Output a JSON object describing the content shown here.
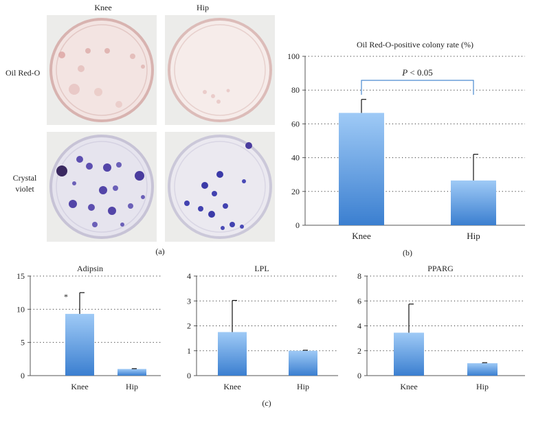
{
  "panel_a": {
    "column_headers": [
      "Knee",
      "Hip"
    ],
    "row_labels": [
      "Oil Red-O",
      "Crystal\nviolet"
    ],
    "row_label_lines": [
      [
        "Oil Red-O"
      ],
      [
        "Crystal",
        "violet"
      ]
    ],
    "caption": "(a)",
    "colors": {
      "oil_red_stain": "#d9a0a0",
      "crystal_violet": "#4a3a9a",
      "plate_bg": "#ececea"
    }
  },
  "panel_b": {
    "caption": "(b)"
  },
  "panel_c": {
    "caption": "(c)"
  },
  "chart_data": [
    {
      "id": "b",
      "type": "bar",
      "title": "Oil Red-O-positive colony rate (%)",
      "categories": [
        "Knee",
        "Hip"
      ],
      "values": [
        66.5,
        26.5
      ],
      "error_upper": [
        74.5,
        42
      ],
      "ylim": [
        0,
        100
      ],
      "yticks": [
        0,
        20,
        40,
        60,
        80,
        100
      ],
      "grid": "dotted horizontal",
      "annotation": {
        "text_italic": "P",
        "text_rest": " < 0.05",
        "between": [
          "Knee",
          "Hip"
        ]
      },
      "colors": {
        "bar_top": "#9fcaf6",
        "bar_bottom": "#3b7fd0",
        "bracket": "#4a8ad0"
      }
    },
    {
      "id": "c1",
      "type": "bar",
      "title": "Adipsin",
      "categories": [
        "Knee",
        "Hip"
      ],
      "values": [
        9.3,
        1.0
      ],
      "error_upper": [
        12.5,
        1.05
      ],
      "ylim": [
        0,
        15
      ],
      "yticks": [
        0,
        5,
        10,
        15
      ],
      "significance_marker": {
        "text": "*",
        "category": "Knee"
      }
    },
    {
      "id": "c2",
      "type": "bar",
      "title": "LPL",
      "categories": [
        "Knee",
        "Hip"
      ],
      "values": [
        1.75,
        1.0
      ],
      "error_upper": [
        3.02,
        1.02
      ],
      "ylim": [
        0,
        4
      ],
      "yticks": [
        0,
        1,
        2,
        3,
        4
      ]
    },
    {
      "id": "c3",
      "type": "bar",
      "title": "PPARG",
      "categories": [
        "Knee",
        "Hip"
      ],
      "values": [
        3.45,
        1.0
      ],
      "error_upper": [
        5.75,
        1.04
      ],
      "ylim": [
        0,
        8
      ],
      "yticks": [
        0,
        2,
        4,
        6,
        8
      ]
    }
  ]
}
